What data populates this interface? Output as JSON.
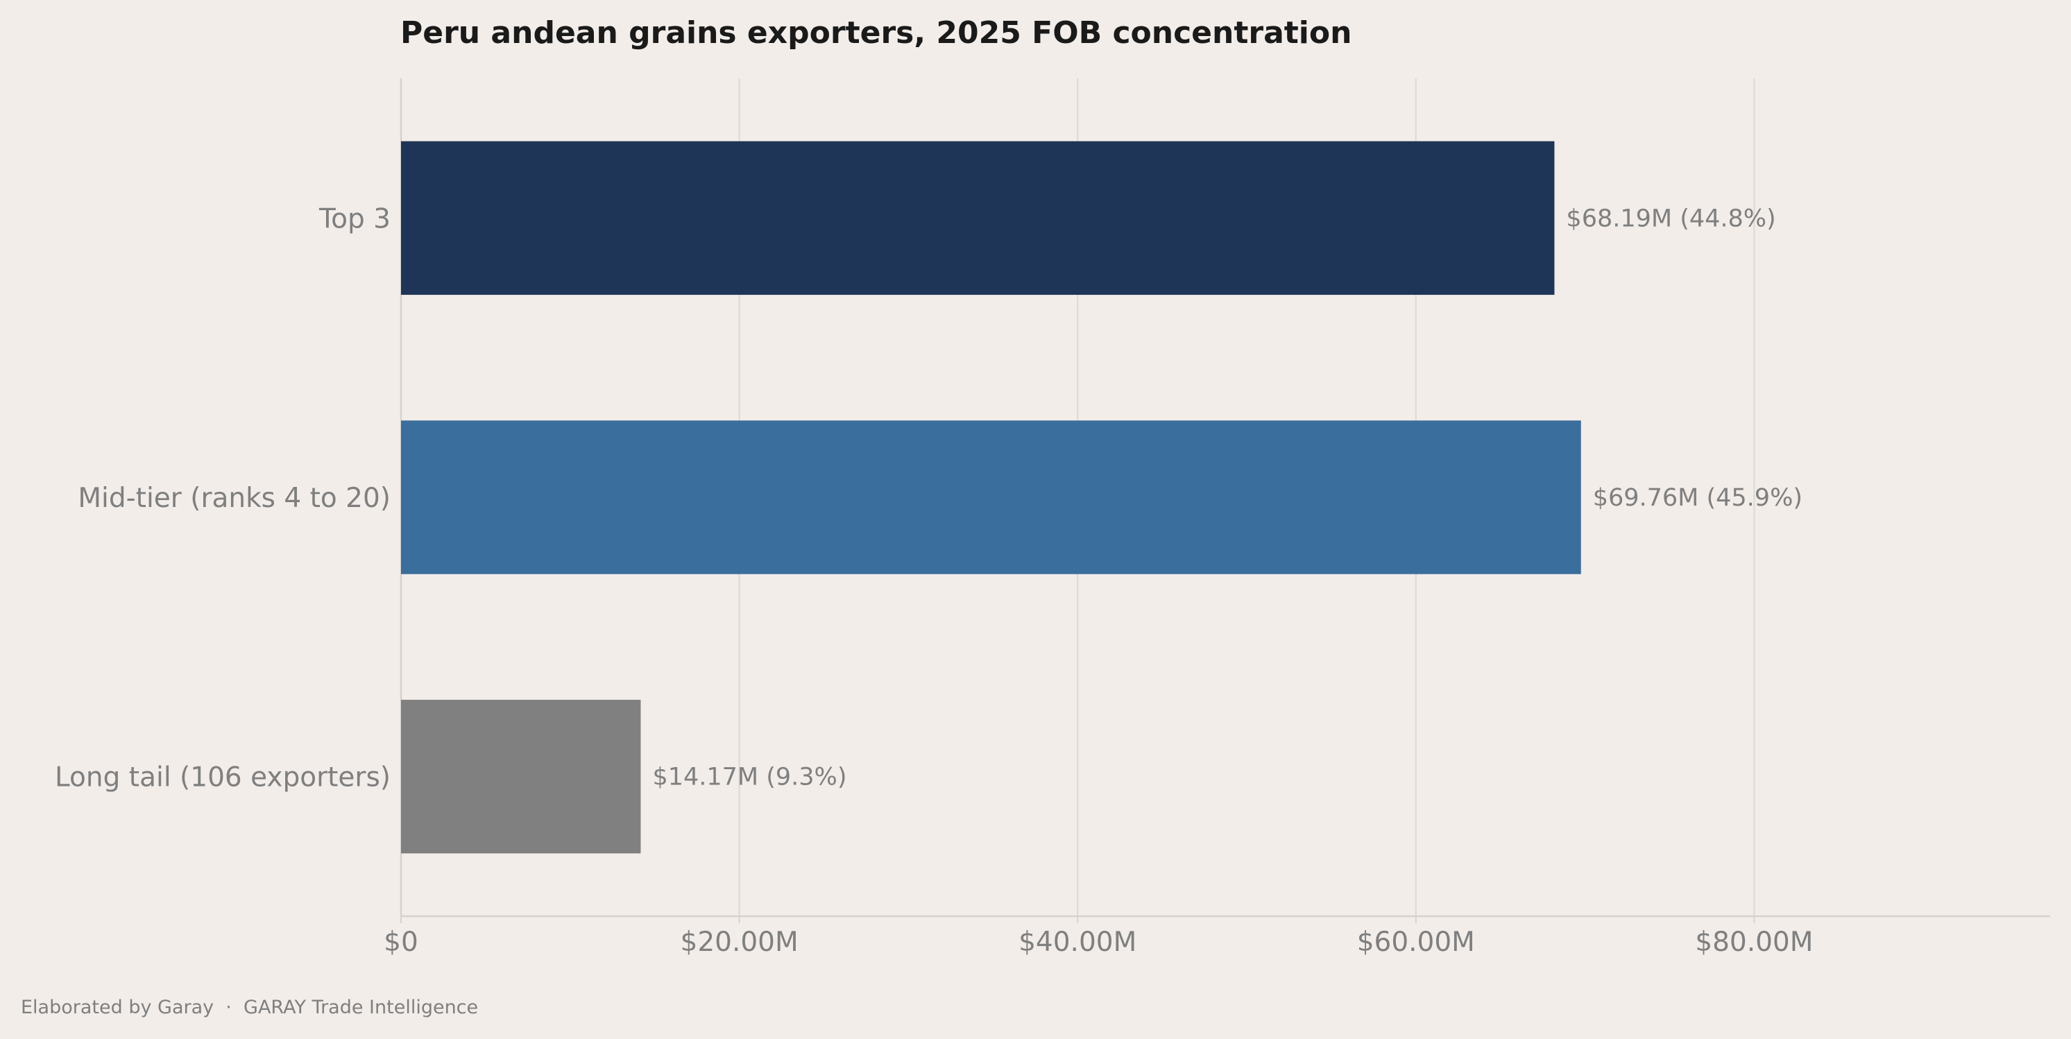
{
  "chart_data": {
    "type": "bar",
    "orientation": "horizontal",
    "title": "Peru andean grains exporters, 2025 FOB concentration",
    "categories": [
      "Top 3",
      "Mid-tier (ranks 4 to 20)",
      "Long tail (106 exporters)"
    ],
    "values": [
      68.19,
      69.76,
      14.17
    ],
    "value_labels": [
      "$68.19M  (44.8%)",
      "$69.76M  (45.9%)",
      "$14.17M  (9.3%)"
    ],
    "colors": [
      "#1e3557",
      "#3a6e9c",
      "#808080"
    ],
    "xlim": [
      0,
      97.5
    ],
    "x_ticks": [
      0,
      20,
      40,
      60,
      80
    ],
    "x_tick_labels": [
      "$0",
      "$20.00M",
      "$40.00M",
      "$60.00M",
      "$80.00M"
    ],
    "xlabel": "",
    "ylabel": "",
    "grid": "vertical"
  },
  "footer": {
    "credit": "Elaborated by Garay  ·  GARAY Trade Intelligence"
  }
}
